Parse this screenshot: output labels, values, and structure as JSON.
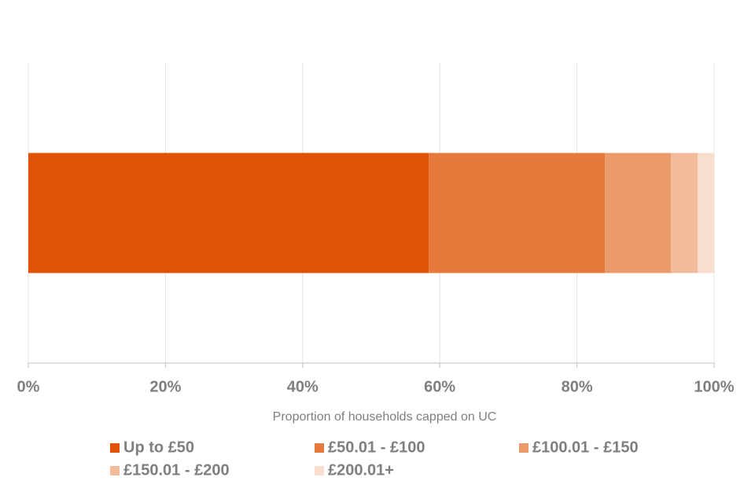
{
  "chart_data": {
    "type": "stacked-bar-horizontal",
    "x_label": "Proportion of households capped on UC",
    "categories": [
      null
    ],
    "series": [
      {
        "name": "Up to £50",
        "color": "#e05206",
        "values": [
          58.4
        ]
      },
      {
        "name": "£50.01 - £100",
        "color": "#e8793d",
        "values": [
          25.7
        ]
      },
      {
        "name": "£100.01 - £150",
        "color": "#eb9a6c",
        "values": [
          9.6
        ]
      },
      {
        "name": "£150.01 - £200",
        "color": "#f2bb9b",
        "values": [
          3.9
        ]
      },
      {
        "name": "£200.01+",
        "color": "#f9ddcd",
        "values": [
          2.4
        ]
      }
    ],
    "xlim": [
      0,
      100
    ],
    "xticks": [
      {
        "value": 0,
        "label": "0%"
      },
      {
        "value": 20,
        "label": "20%"
      },
      {
        "value": 40,
        "label": "40%"
      },
      {
        "value": 60,
        "label": "60%"
      },
      {
        "value": 80,
        "label": "80%"
      },
      {
        "value": 100,
        "label": "100%"
      }
    ],
    "grid": true,
    "legend": "bottom"
  }
}
